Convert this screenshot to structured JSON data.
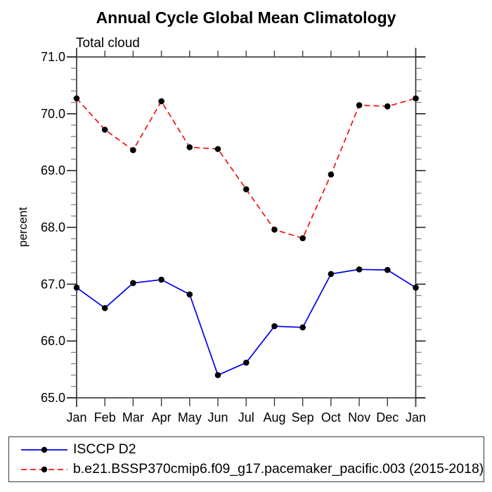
{
  "title": "Annual Cycle Global Mean Climatology",
  "subtitle": "Total cloud",
  "chart_data": {
    "type": "line",
    "title": "Annual Cycle Global Mean Climatology",
    "subtitle": "Total cloud",
    "xlabel": "",
    "ylabel": "percent",
    "categories": [
      "Jan",
      "Feb",
      "Mar",
      "Apr",
      "May",
      "Jun",
      "Jul",
      "Aug",
      "Sep",
      "Oct",
      "Nov",
      "Dec",
      "Jan"
    ],
    "series": [
      {
        "name": "ISCCP D2",
        "color": "#0000ee",
        "line_style": "solid",
        "marker": "filled-circle",
        "marker_color": "#000000",
        "values": [
          66.94,
          66.58,
          67.02,
          67.08,
          66.82,
          65.4,
          65.62,
          66.26,
          66.24,
          67.18,
          67.26,
          67.25,
          66.94
        ]
      },
      {
        "name": "b.e21.BSSP370cmip6.f09_g17.pacemaker_pacific.003 (2015-2018)",
        "color": "#f21010",
        "line_style": "dashed",
        "marker": "filled-circle",
        "marker_color": "#000000",
        "values": [
          70.27,
          69.72,
          69.36,
          70.22,
          69.41,
          69.38,
          68.67,
          67.96,
          67.81,
          68.93,
          70.15,
          70.13,
          70.27
        ]
      }
    ],
    "ylim": [
      65.0,
      71.0
    ],
    "ytick_interval": 1.0,
    "y_minor_tick_interval": 0.2,
    "ytick_labels": [
      "65.0",
      "66.0",
      "67.0",
      "68.0",
      "69.0",
      "70.0",
      "71.0"
    ],
    "grid": false,
    "legend_position": "bottom"
  }
}
